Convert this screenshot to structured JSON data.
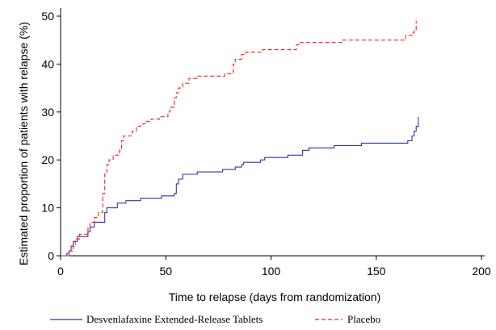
{
  "chart_data": {
    "type": "line",
    "title": "",
    "xlabel": "Time to relapse (days from randomization)",
    "ylabel": "Estimated proportion of patients with relapse (%)",
    "xlim": [
      0,
      200
    ],
    "ylim": [
      0,
      50
    ],
    "xticks": [
      0,
      50,
      100,
      150,
      200
    ],
    "yticks": [
      0,
      10,
      20,
      30,
      40,
      50
    ],
    "grid": false,
    "legend_position": "bottom",
    "series": [
      {
        "name": "Desvenlafaxine Extended-Release Tablets",
        "color": "#3333aa",
        "style": "solid",
        "points": [
          [
            0,
            0
          ],
          [
            3,
            0
          ],
          [
            3,
            0.5
          ],
          [
            4,
            0.5
          ],
          [
            4,
            1
          ],
          [
            5,
            1
          ],
          [
            5,
            2
          ],
          [
            6,
            2
          ],
          [
            6,
            3
          ],
          [
            8,
            3
          ],
          [
            8,
            4
          ],
          [
            13,
            4
          ],
          [
            13,
            5
          ],
          [
            14,
            5
          ],
          [
            14,
            6
          ],
          [
            16,
            6
          ],
          [
            16,
            7
          ],
          [
            21,
            7
          ],
          [
            21,
            9
          ],
          [
            22,
            9
          ],
          [
            22,
            10
          ],
          [
            27,
            10
          ],
          [
            27,
            11
          ],
          [
            31,
            11
          ],
          [
            31,
            11.5
          ],
          [
            38,
            11.5
          ],
          [
            38,
            12
          ],
          [
            48,
            12
          ],
          [
            48,
            12.5
          ],
          [
            54,
            12.5
          ],
          [
            54,
            13
          ],
          [
            55,
            13
          ],
          [
            55,
            15
          ],
          [
            56,
            15
          ],
          [
            56,
            16
          ],
          [
            58,
            16
          ],
          [
            58,
            17
          ],
          [
            65,
            17
          ],
          [
            65,
            17.5
          ],
          [
            77,
            17.5
          ],
          [
            77,
            18
          ],
          [
            83,
            18
          ],
          [
            83,
            18.5
          ],
          [
            86,
            18.5
          ],
          [
            86,
            19
          ],
          [
            87,
            19
          ],
          [
            87,
            19.5
          ],
          [
            95,
            19.5
          ],
          [
            95,
            20
          ],
          [
            97,
            20
          ],
          [
            97,
            20.5
          ],
          [
            108,
            20.5
          ],
          [
            108,
            21
          ],
          [
            115,
            21
          ],
          [
            115,
            22
          ],
          [
            118,
            22
          ],
          [
            118,
            22.5
          ],
          [
            130,
            22.5
          ],
          [
            130,
            23
          ],
          [
            143,
            23
          ],
          [
            143,
            23.5
          ],
          [
            165,
            23.5
          ],
          [
            165,
            24
          ],
          [
            167,
            24
          ],
          [
            167,
            25
          ],
          [
            168,
            25
          ],
          [
            168,
            26
          ],
          [
            169,
            26
          ],
          [
            169,
            27
          ],
          [
            170,
            27
          ],
          [
            170,
            29
          ]
        ]
      },
      {
        "name": "Placebo",
        "color": "#ee2222",
        "style": "dashed",
        "points": [
          [
            0,
            0
          ],
          [
            4,
            0
          ],
          [
            4,
            1
          ],
          [
            6,
            1
          ],
          [
            6,
            2
          ],
          [
            7,
            2
          ],
          [
            7,
            3.5
          ],
          [
            9,
            3.5
          ],
          [
            9,
            4.5
          ],
          [
            13,
            4.5
          ],
          [
            13,
            6
          ],
          [
            14,
            6
          ],
          [
            14,
            7
          ],
          [
            16,
            7
          ],
          [
            16,
            8
          ],
          [
            18,
            8
          ],
          [
            18,
            9
          ],
          [
            20,
            9
          ],
          [
            20,
            13
          ],
          [
            21,
            13
          ],
          [
            21,
            17
          ],
          [
            22,
            17
          ],
          [
            22,
            19
          ],
          [
            23,
            19
          ],
          [
            23,
            20
          ],
          [
            25,
            20
          ],
          [
            25,
            21
          ],
          [
            28,
            21
          ],
          [
            28,
            22
          ],
          [
            29,
            22
          ],
          [
            29,
            24
          ],
          [
            30,
            24
          ],
          [
            30,
            25
          ],
          [
            34,
            25
          ],
          [
            34,
            26
          ],
          [
            36,
            26
          ],
          [
            36,
            27
          ],
          [
            38,
            27
          ],
          [
            38,
            27.5
          ],
          [
            40,
            27.5
          ],
          [
            40,
            28
          ],
          [
            43,
            28
          ],
          [
            43,
            28.5
          ],
          [
            47,
            28.5
          ],
          [
            47,
            29
          ],
          [
            51,
            29
          ],
          [
            51,
            30
          ],
          [
            52,
            30
          ],
          [
            52,
            31
          ],
          [
            54,
            31
          ],
          [
            54,
            33
          ],
          [
            55,
            33
          ],
          [
            55,
            34
          ],
          [
            56,
            34
          ],
          [
            56,
            35
          ],
          [
            58,
            35
          ],
          [
            58,
            36
          ],
          [
            61,
            36
          ],
          [
            61,
            37
          ],
          [
            65,
            37
          ],
          [
            65,
            37.5
          ],
          [
            78,
            37.5
          ],
          [
            78,
            38
          ],
          [
            82,
            38
          ],
          [
            82,
            40
          ],
          [
            83,
            40
          ],
          [
            83,
            41
          ],
          [
            86,
            41
          ],
          [
            86,
            42
          ],
          [
            88,
            42
          ],
          [
            88,
            42.5
          ],
          [
            96,
            42.5
          ],
          [
            96,
            43
          ],
          [
            112,
            43
          ],
          [
            112,
            44
          ],
          [
            114,
            44
          ],
          [
            114,
            44.5
          ],
          [
            134,
            44.5
          ],
          [
            134,
            45
          ],
          [
            164,
            45
          ],
          [
            164,
            46
          ],
          [
            167,
            46
          ],
          [
            167,
            46.5
          ],
          [
            168,
            46.5
          ],
          [
            168,
            47
          ],
          [
            169,
            47
          ],
          [
            169,
            49
          ]
        ]
      }
    ]
  }
}
